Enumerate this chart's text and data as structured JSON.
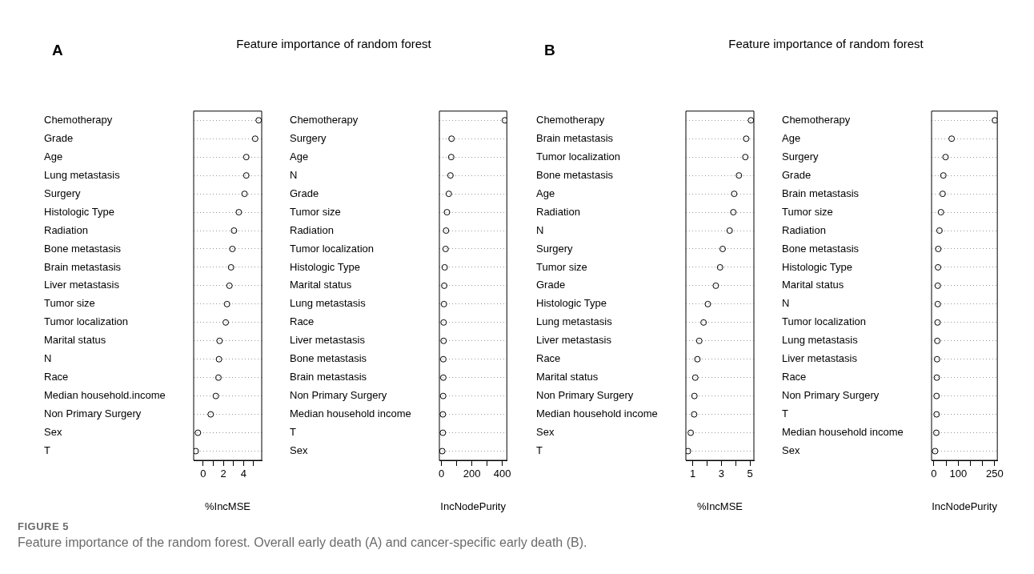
{
  "chart_data": [
    {
      "type": "scatter",
      "orientation": "horizontal",
      "title": "Feature importance of random forest",
      "xlabel": "%IncMSE",
      "marker": "circle",
      "grid": "y",
      "color": "#000000",
      "annotations": [
        "A",
        "FIGURE 5",
        "Feature importance of the random forest. Overall early death (A) and cancer-specific early death (B)."
      ],
      "categories": [
        "Chemotherapy",
        "Grade",
        "Age",
        "Lung metastasis",
        "Surgery",
        "Histologic Type",
        "Radiation",
        "Bone metastasis",
        "Brain metastasis",
        "Liver metastasis",
        "Tumor size",
        "Tumor localization",
        "Marital status",
        "N",
        "Race",
        "Median household.income",
        "Non Primary Surgery",
        "Sex",
        "T"
      ],
      "values": [
        5.5,
        5.15,
        4.27,
        4.27,
        4.1,
        3.53,
        3.05,
        2.89,
        2.76,
        2.6,
        2.36,
        2.23,
        1.62,
        1.56,
        1.51,
        1.25,
        0.74,
        -0.53,
        -0.74
      ],
      "xlim": [
        -0.95,
        5.8
      ],
      "xticks": [
        0,
        {
          "value": 1,
          "label": null
        },
        2,
        {
          "value": 3,
          "label": null
        },
        4,
        {
          "value": 5,
          "label": null
        }
      ]
    },
    {
      "type": "scatter",
      "orientation": "horizontal",
      "xlabel": "IncNodePurity",
      "marker": "circle",
      "grid": "y",
      "color": "#000000",
      "categories": [
        "Chemotherapy",
        "Surgery",
        "Age",
        "N",
        "Grade",
        "Tumor size",
        "Radiation",
        "Tumor localization",
        "Histologic Type",
        "Marital status",
        "Lung metastasis",
        "Race",
        "Liver metastasis",
        "Bone metastasis",
        "Brain metastasis",
        "Non Primary Surgery",
        "Median household income",
        "T",
        "Sex"
      ],
      "values": [
        417,
        66,
        64,
        59,
        48,
        36,
        30,
        27,
        21,
        18,
        16,
        14,
        14,
        12,
        12,
        11,
        9,
        9,
        5
      ],
      "xlim": [
        -14,
        430
      ],
      "xticks": [
        0,
        {
          "value": 100,
          "label": null
        },
        200,
        {
          "value": 300,
          "label": null
        },
        400
      ]
    },
    {
      "type": "scatter",
      "orientation": "horizontal",
      "title": "Feature importance of random forest",
      "xlabel": "%IncMSE",
      "marker": "circle",
      "grid": "y",
      "color": "#000000",
      "annotations": [
        "B"
      ],
      "categories": [
        "Chemotherapy",
        "Brain metastasis",
        "Tumor localization",
        "Bone metastasis",
        "Age",
        "Radiation",
        "N",
        "Surgery",
        "Tumor size",
        "Grade",
        "Histologic Type",
        "Lung metastasis",
        "Liver metastasis",
        "Race",
        "Marital status",
        "Non Primary Surgery",
        "Median household income",
        "Sex",
        "T"
      ],
      "values": [
        5.07,
        4.74,
        4.68,
        4.23,
        3.9,
        3.84,
        3.58,
        3.09,
        2.91,
        2.61,
        2.05,
        1.75,
        1.45,
        1.32,
        1.17,
        1.11,
        1.09,
        0.85,
        0.66
      ],
      "xlim": [
        0.51,
        5.28
      ],
      "xticks": [
        1,
        {
          "value": 2,
          "label": null
        },
        3,
        {
          "value": 4,
          "label": null
        },
        5
      ]
    },
    {
      "type": "scatter",
      "orientation": "horizontal",
      "xlabel": "IncNodePurity",
      "marker": "circle",
      "grid": "y",
      "color": "#000000",
      "categories": [
        "Chemotherapy",
        "Age",
        "Surgery",
        "Grade",
        "Brain metastasis",
        "Tumor size",
        "Radiation",
        "Bone metastasis",
        "Histologic Type",
        "Marital status",
        "N",
        "Tumor localization",
        "Lung metastasis",
        "Liver metastasis",
        "Race",
        "Non Primary Surgery",
        "T",
        "Median household income",
        "Sex"
      ],
      "values": [
        251,
        73,
        48,
        39,
        36,
        29,
        23,
        18,
        17,
        16,
        16,
        15,
        14,
        13,
        12,
        11,
        11,
        10,
        5
      ],
      "xlim": [
        -9.6,
        261
      ],
      "xticks": [
        0,
        {
          "value": 50,
          "label": null
        },
        100,
        {
          "value": 150,
          "label": null
        },
        {
          "value": 200,
          "label": null
        },
        250
      ]
    }
  ]
}
